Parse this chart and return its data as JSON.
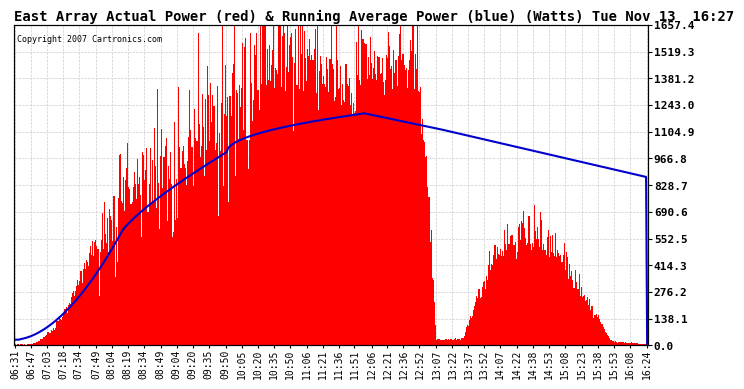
{
  "title": "East Array Actual Power (red) & Running Average Power (blue) (Watts) Tue Nov 13  16:27",
  "copyright": "Copyright 2007 Cartronics.com",
  "yticks": [
    0.0,
    138.1,
    276.2,
    414.3,
    552.5,
    690.6,
    828.7,
    966.8,
    1104.9,
    1243.0,
    1381.2,
    1519.3,
    1657.4
  ],
  "ymax": 1657.4,
  "ymin": 0.0,
  "bar_color": "#FF0000",
  "avg_color": "#0000CC",
  "bg_color": "#FFFFFF",
  "plot_bg_color": "#FFFFFF",
  "grid_color": "#CCCCCC",
  "xtick_labels": [
    "06:31",
    "06:47",
    "07:03",
    "07:18",
    "07:34",
    "07:49",
    "08:04",
    "08:19",
    "08:34",
    "08:49",
    "09:04",
    "09:20",
    "09:35",
    "09:50",
    "10:05",
    "10:20",
    "10:35",
    "10:50",
    "11:06",
    "11:21",
    "11:36",
    "11:51",
    "12:06",
    "12:21",
    "12:36",
    "12:52",
    "13:07",
    "13:22",
    "13:37",
    "13:52",
    "14:07",
    "14:22",
    "14:38",
    "14:53",
    "15:08",
    "15:23",
    "15:38",
    "15:53",
    "16:08",
    "16:24"
  ],
  "title_fontsize": 10,
  "tick_fontsize": 7,
  "ylabel_right_fontsize": 8
}
